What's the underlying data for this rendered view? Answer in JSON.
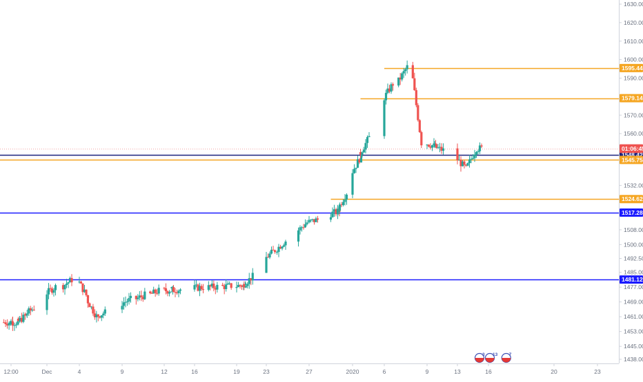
{
  "chart_data": {
    "type": "candlestick",
    "y_ticks": [
      "1630.00",
      "1620.00",
      "1610.00",
      "1600.00",
      "1590.00",
      "1570.00",
      "1560.00",
      "1532.00",
      "1508.00",
      "1500.00",
      "1492.50",
      "1485.00",
      "1477.00",
      "1469.00",
      "1461.00",
      "1453.00",
      "1445.00",
      "1438.00"
    ],
    "x_ticks": [
      "12:00",
      "Dec",
      "4",
      "9",
      "12",
      "16",
      "19",
      "23",
      "27",
      "2020",
      "6",
      "9",
      "13",
      "16",
      "20",
      "23"
    ],
    "horizontal_levels": [
      {
        "value": 1595.44,
        "label": "1595.44",
        "color": "#f5a623",
        "start": "2020-01-06",
        "style": "solid"
      },
      {
        "value": 1579.14,
        "label": "1579.14",
        "color": "#f5a623",
        "start": "2020-01-03",
        "style": "solid"
      },
      {
        "value": 1551.99,
        "label": "1551.99",
        "color": "#ef5350",
        "start": "start",
        "style": "dotted"
      },
      {
        "value": 1548.42,
        "label": "1548.42",
        "color": "#1a237e",
        "start": "start",
        "style": "solid"
      },
      {
        "value": 1545.75,
        "label": "1545.75",
        "color": "#f5a623",
        "start": "start",
        "style": "solid"
      },
      {
        "value": 1524.62,
        "label": "1524.62",
        "color": "#f5a623",
        "start": "2019-12-30",
        "style": "solid"
      },
      {
        "value": 1517.28,
        "label": "1517.28",
        "color": "#1a1aff",
        "start": "start",
        "style": "solid"
      },
      {
        "value": 1481.12,
        "label": "1481.12",
        "color": "#1a1aff",
        "start": "start",
        "style": "solid"
      }
    ],
    "countdown_label": "01:06:45",
    "events": [
      {
        "date": "2020-01-15",
        "badge": "3"
      },
      {
        "date": "2020-01-16",
        "badge": "13"
      },
      {
        "date": "2020-01-17",
        "badge": "7"
      }
    ],
    "key_prices": [
      {
        "date": "2019-11-28",
        "value": 1458
      },
      {
        "date": "2019-12-04",
        "value": 1481
      },
      {
        "date": "2019-12-06",
        "value": 1461
      },
      {
        "date": "2019-12-12",
        "value": 1475
      },
      {
        "date": "2019-12-20",
        "value": 1478
      },
      {
        "date": "2019-12-24",
        "value": 1497
      },
      {
        "date": "2019-12-27",
        "value": 1512
      },
      {
        "date": "2019-12-31",
        "value": 1518
      },
      {
        "date": "2020-01-06",
        "value": 1578
      },
      {
        "date": "2020-01-08",
        "value": 1596
      },
      {
        "date": "2020-01-09",
        "value": 1555
      },
      {
        "date": "2020-01-13",
        "value": 1547
      },
      {
        "date": "2020-01-14",
        "value": 1541
      },
      {
        "date": "2020-01-15",
        "value": 1551.99
      }
    ],
    "grid": false,
    "bull_color": "#26a69a",
    "bear_color": "#ef5350"
  }
}
